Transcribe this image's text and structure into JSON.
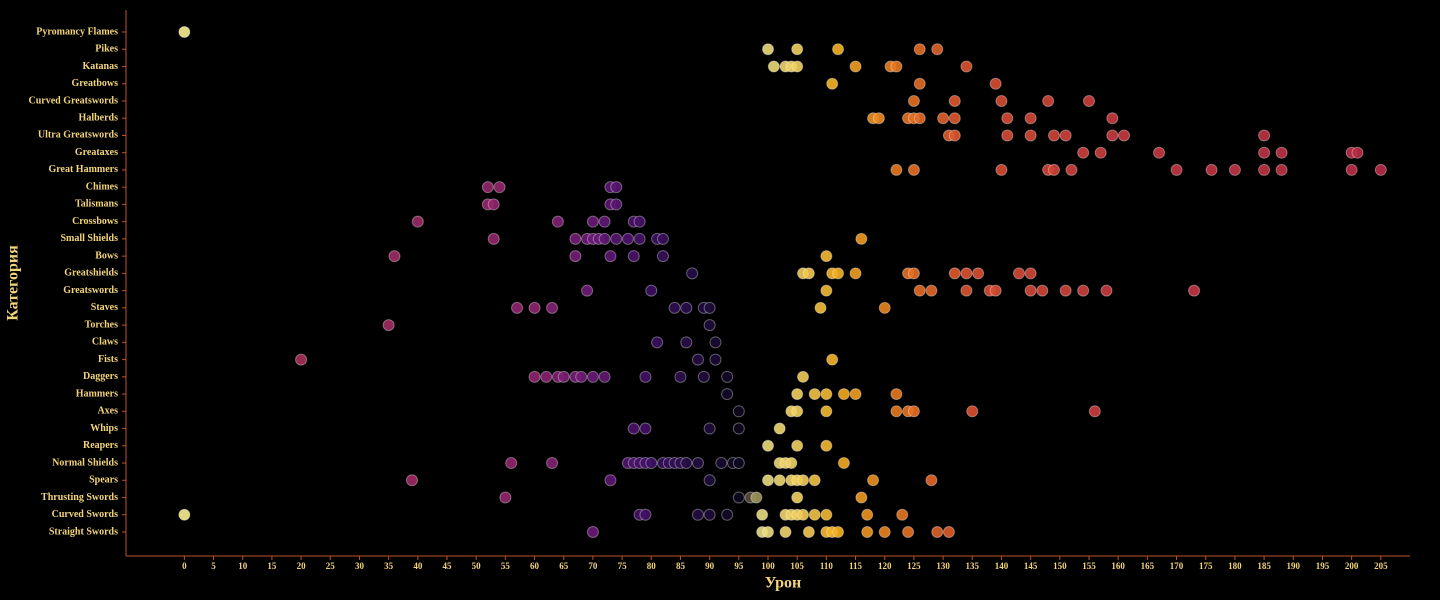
{
  "chart_data": {
    "type": "strip",
    "x_label": "Урон",
    "y_label": "Категория",
    "xlim": [
      -10,
      210
    ],
    "xticks": [
      0,
      5,
      10,
      15,
      20,
      25,
      30,
      35,
      40,
      45,
      50,
      55,
      60,
      65,
      70,
      75,
      80,
      85,
      90,
      95,
      100,
      105,
      110,
      115,
      120,
      125,
      130,
      135,
      140,
      145,
      150,
      155,
      160,
      165,
      170,
      175,
      180,
      185,
      190,
      195,
      200,
      205
    ],
    "axis_color": "#c0502a",
    "colorscale": [
      {
        "value": 0,
        "color": "#fbf08e"
      },
      {
        "value": 20,
        "color": "#a8305a"
      },
      {
        "value": 40,
        "color": "#9c2a66"
      },
      {
        "value": 60,
        "color": "#8e2470"
      },
      {
        "value": 70,
        "color": "#6a1a78"
      },
      {
        "value": 80,
        "color": "#3d1063"
      },
      {
        "value": 90,
        "color": "#1c0c3a"
      },
      {
        "value": 96,
        "color": "#0a0618"
      },
      {
        "value": 99,
        "color": "#e8dc80"
      },
      {
        "value": 105,
        "color": "#f2d060"
      },
      {
        "value": 112,
        "color": "#f5b020"
      },
      {
        "value": 122,
        "color": "#e87820"
      },
      {
        "value": 135,
        "color": "#da5030"
      },
      {
        "value": 160,
        "color": "#c83a40"
      },
      {
        "value": 205,
        "color": "#b82d48"
      }
    ],
    "categories": [
      "Straight Swords",
      "Curved Swords",
      "Thrusting Swords",
      "Spears",
      "Normal Shields",
      "Reapers",
      "Whips",
      "Axes",
      "Hammers",
      "Daggers",
      "Fists",
      "Claws",
      "Torches",
      "Staves",
      "Greatswords",
      "Greatshields",
      "Bows",
      "Small Shields",
      "Crossbows",
      "Talismans",
      "Chimes",
      "Great Hammers",
      "Greataxes",
      "Ultra Greatswords",
      "Halberds",
      "Curved Greatswords",
      "Greatbows",
      "Katanas",
      "Pikes",
      "Pyromancy Flames"
    ],
    "values": [
      [
        70,
        99,
        100,
        103,
        107,
        110,
        111,
        112,
        117,
        120,
        124,
        129,
        131
      ],
      [
        0,
        78,
        79,
        88,
        90,
        93,
        99,
        103,
        104,
        105,
        106,
        108,
        110,
        117,
        123
      ],
      [
        55,
        95,
        97,
        98,
        105,
        116
      ],
      [
        39,
        73,
        90,
        100,
        102,
        104,
        105,
        106,
        108,
        118,
        128
      ],
      [
        56,
        63,
        76,
        77,
        78,
        79,
        80,
        82,
        83,
        84,
        85,
        86,
        88,
        92,
        94,
        95,
        102,
        103,
        104,
        113
      ],
      [
        100,
        105,
        110
      ],
      [
        77,
        79,
        90,
        95,
        102
      ],
      [
        95,
        104,
        105,
        110,
        122,
        124,
        125,
        135,
        156
      ],
      [
        93,
        105,
        108,
        110,
        113,
        115,
        122
      ],
      [
        60,
        62,
        64,
        65,
        67,
        68,
        70,
        72,
        79,
        85,
        89,
        93,
        106
      ],
      [
        20,
        88,
        91,
        111
      ],
      [
        81,
        86,
        91
      ],
      [
        35,
        90
      ],
      [
        57,
        60,
        63,
        84,
        86,
        89,
        90,
        109,
        120
      ],
      [
        69,
        80,
        110,
        126,
        128,
        134,
        138,
        139,
        145,
        147,
        151,
        154,
        158,
        173
      ],
      [
        87,
        106,
        107,
        111,
        112,
        115,
        124,
        125,
        132,
        134,
        136,
        143,
        145
      ],
      [
        36,
        67,
        73,
        77,
        82,
        110
      ],
      [
        53,
        67,
        69,
        70,
        71,
        72,
        74,
        76,
        78,
        81,
        82,
        116
      ],
      [
        40,
        64,
        70,
        72,
        77,
        78
      ],
      [
        52,
        53,
        73,
        74
      ],
      [
        52,
        54,
        73,
        74
      ],
      [
        122,
        125,
        140,
        148,
        149,
        152,
        170,
        176,
        180,
        185,
        188,
        200,
        205
      ],
      [
        154,
        157,
        167,
        185,
        188,
        200,
        201
      ],
      [
        131,
        132,
        141,
        145,
        149,
        151,
        159,
        161,
        185
      ],
      [
        118,
        119,
        124,
        125,
        126,
        130,
        132,
        141,
        145,
        159
      ],
      [
        125,
        132,
        140,
        148,
        155
      ],
      [
        111,
        126,
        139
      ],
      [
        101,
        103,
        104,
        105,
        115,
        121,
        122,
        134
      ],
      [
        100,
        105,
        112,
        126,
        129
      ],
      [
        0
      ]
    ]
  }
}
